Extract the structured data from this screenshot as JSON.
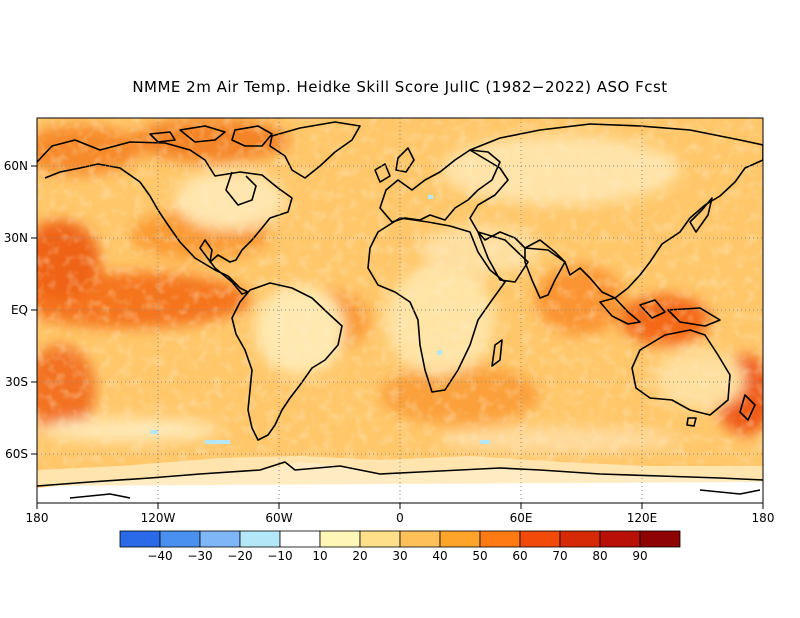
{
  "title": "NMME 2m Air Temp. Heidke Skill Score JulIC (1982−2022) ASO Fcst",
  "map": {
    "projection": "equirectangular",
    "lon_range": [
      -180,
      180
    ],
    "lat_range": [
      -80,
      80
    ],
    "lat_ticks": [
      "60N",
      "30N",
      "EQ",
      "30S",
      "60S"
    ],
    "lon_ticks": [
      "180",
      "120W",
      "60W",
      "0",
      "60E",
      "120E",
      "180"
    ],
    "grid": "dotted at 30° latitude / 60° longitude",
    "field": "Heidke Skill Score (mostly positive 20–60, highest over tropical oceans, Indonesia and Arctic; near zero over central continents and Antarctica)"
  },
  "colorbar": {
    "tick_labels": [
      "−40",
      "−30",
      "−20",
      "−10",
      "10",
      "20",
      "30",
      "40",
      "50",
      "60",
      "70",
      "80",
      "90"
    ],
    "colors": [
      "#2a6ae8",
      "#4a90f0",
      "#7fb6f8",
      "#b4e8f8",
      "#ffffff",
      "#fff6b8",
      "#ffe08a",
      "#ffc05a",
      "#ffa42a",
      "#ff7a12",
      "#f24a08",
      "#d62a06",
      "#b80f06",
      "#8e0404"
    ]
  }
}
